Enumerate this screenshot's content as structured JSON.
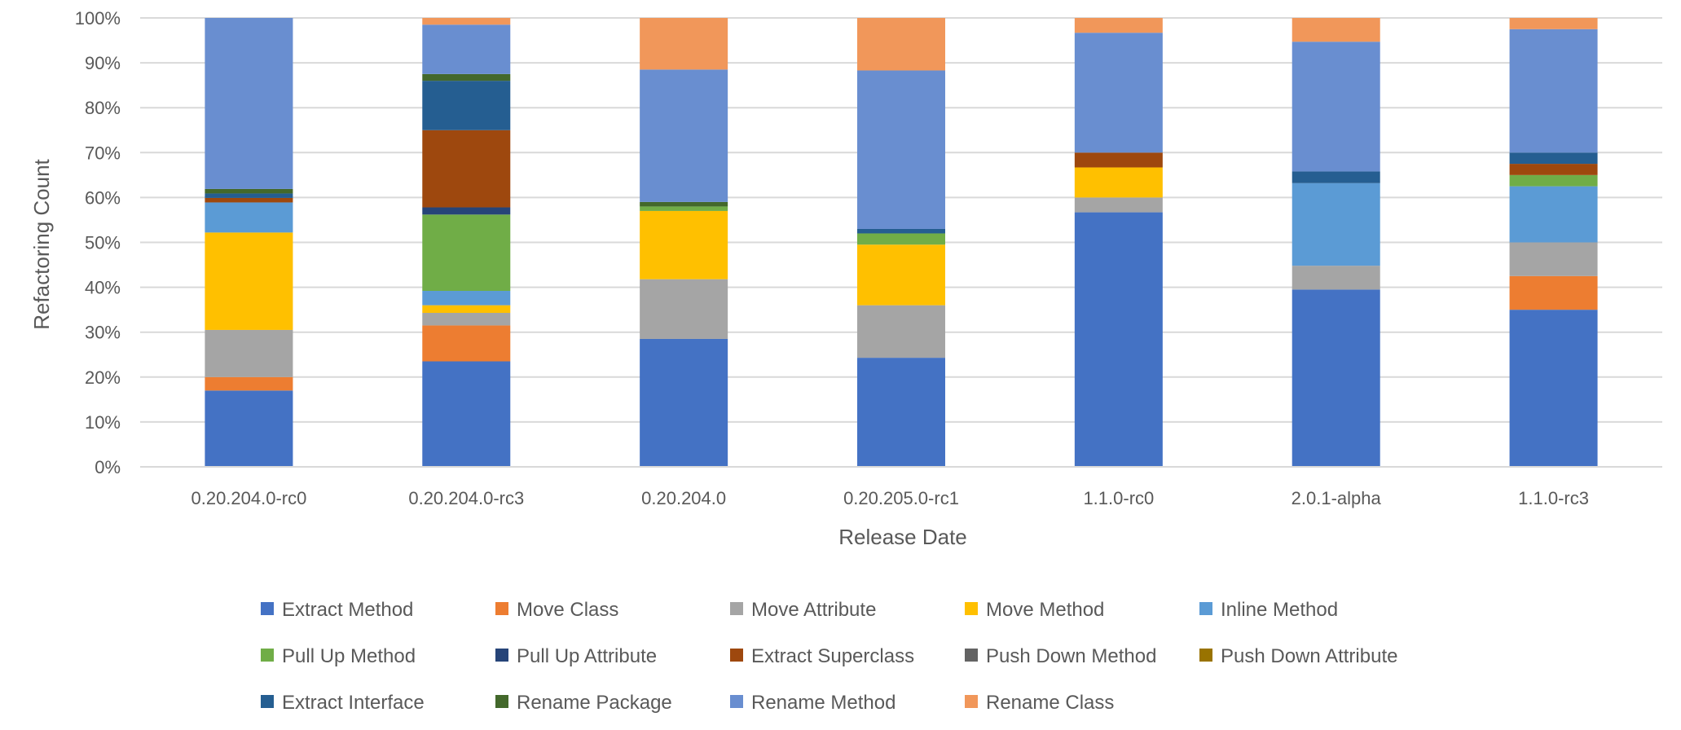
{
  "chart_data": {
    "type": "bar",
    "stacked": "percent",
    "title": "",
    "xlabel": "Release Date",
    "ylabel": "Refactoring Count",
    "ylim": [
      0,
      100
    ],
    "y_ticks": [
      "0%",
      "10%",
      "20%",
      "30%",
      "40%",
      "50%",
      "60%",
      "70%",
      "80%",
      "90%",
      "100%"
    ],
    "grid": true,
    "legend_position": "bottom",
    "categories": [
      "0.20.204.0-rc0",
      "0.20.204.0-rc3",
      "0.20.204.0",
      "0.20.205.0-rc1",
      "1.1.0-rc0",
      "2.0.1-alpha",
      "1.1.0-rc3"
    ],
    "series": [
      {
        "name": "Extract Method",
        "color": "#4472C4",
        "values": [
          17.0,
          23.5,
          28.5,
          24.3,
          56.7,
          39.5,
          35.0
        ]
      },
      {
        "name": "Move Class",
        "color": "#ED7D31",
        "values": [
          3.0,
          8.0,
          0,
          0,
          0,
          0,
          7.5
        ]
      },
      {
        "name": "Move Attribute",
        "color": "#A5A5A5",
        "values": [
          10.5,
          2.8,
          13.3,
          11.7,
          3.3,
          5.3,
          7.5
        ]
      },
      {
        "name": "Move Method",
        "color": "#FFC000",
        "values": [
          21.7,
          1.7,
          15.2,
          13.5,
          6.7,
          0,
          0
        ]
      },
      {
        "name": "Inline Method",
        "color": "#5B9BD5",
        "values": [
          6.7,
          3.2,
          0,
          0,
          0,
          18.4,
          12.5
        ]
      },
      {
        "name": "Pull Up Method",
        "color": "#70AD47",
        "values": [
          0,
          17.0,
          1.0,
          2.5,
          0,
          0,
          2.5
        ]
      },
      {
        "name": "Pull Up Attribute",
        "color": "#264478",
        "values": [
          0,
          1.6,
          0,
          0,
          0,
          0,
          0
        ]
      },
      {
        "name": "Extract Superclass",
        "color": "#9E480E",
        "values": [
          1.0,
          17.2,
          0,
          0,
          3.3,
          0,
          2.5
        ]
      },
      {
        "name": "Push Down Method",
        "color": "#636363",
        "values": [
          0,
          0,
          0,
          0,
          0,
          0,
          0
        ]
      },
      {
        "name": "Push Down Attribute",
        "color": "#997300",
        "values": [
          0,
          0,
          0,
          0,
          0,
          0,
          0
        ]
      },
      {
        "name": "Extract Interface",
        "color": "#255E91",
        "values": [
          1.0,
          11.0,
          0,
          1.0,
          0,
          2.6,
          2.5
        ]
      },
      {
        "name": "Rename Package",
        "color": "#43682B",
        "values": [
          1.0,
          1.5,
          1.0,
          0,
          0,
          0,
          0
        ]
      },
      {
        "name": "Rename Method",
        "color": "#698ED0",
        "values": [
          38.1,
          11.0,
          29.5,
          35.3,
          26.7,
          28.9,
          27.5
        ]
      },
      {
        "name": "Rename Class",
        "color": "#F1975A",
        "values": [
          0,
          1.5,
          11.5,
          11.7,
          3.3,
          5.3,
          2.5
        ]
      }
    ]
  }
}
